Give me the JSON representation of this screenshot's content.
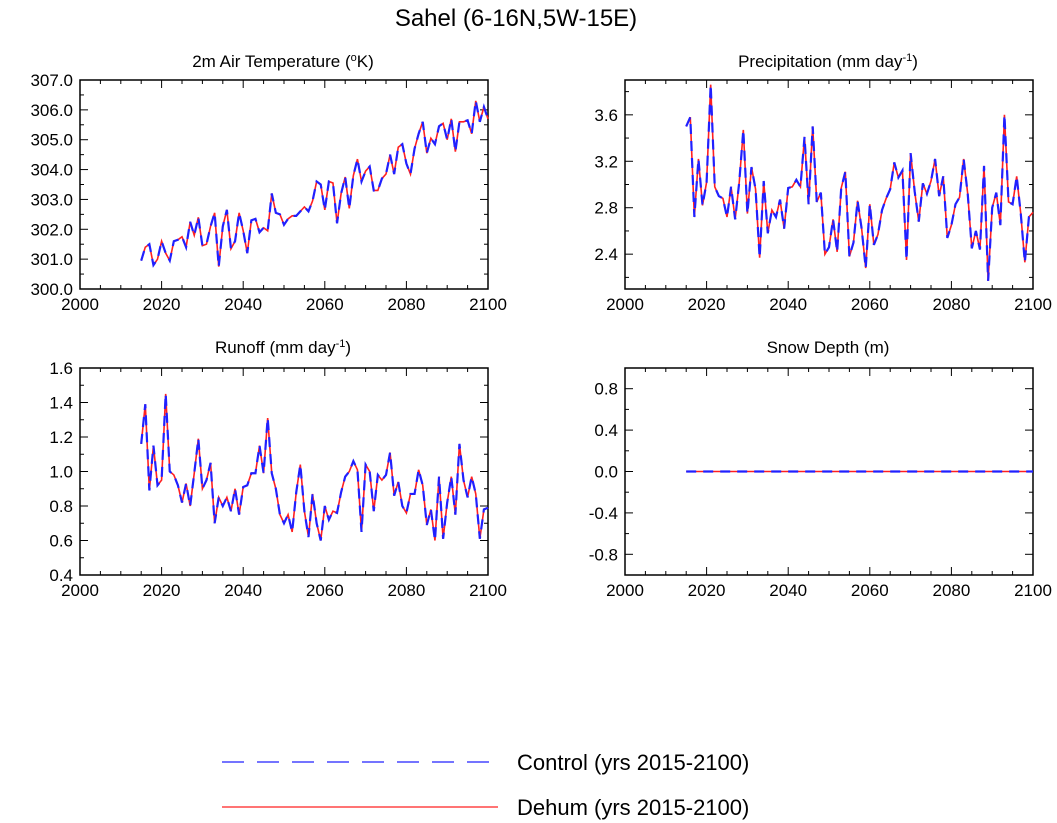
{
  "figure": {
    "title": "Sahel (6-16N,5W-15E)"
  },
  "colors": {
    "control": "#2020ff",
    "dehum": "#ff2020"
  },
  "legend": {
    "entries": [
      {
        "label": "Control (yrs 2015-2100)",
        "style": "dashed",
        "color": "#2020ff"
      },
      {
        "label": "Dehum (yrs 2015-2100)",
        "style": "solid",
        "color": "#ff2020"
      }
    ]
  },
  "chart_data": [
    {
      "type": "line",
      "title": "2m Air Temperature",
      "title_unit_base": "K",
      "title_unit_prefix": "o",
      "xlim": [
        2000,
        2100
      ],
      "ylim": [
        300.0,
        307.0
      ],
      "xticks": [
        2000,
        2020,
        2040,
        2060,
        2080,
        2100
      ],
      "yticks": [
        300.0,
        301.0,
        302.0,
        303.0,
        304.0,
        305.0,
        306.0,
        307.0
      ],
      "ytick_labels": [
        "300.0",
        "301.0",
        "302.0",
        "303.0",
        "304.0",
        "305.0",
        "306.0",
        "307.0"
      ],
      "x_start": 2015,
      "series": [
        {
          "name": "Control (yrs 2015-2100)",
          "values": [
            300.95,
            301.4,
            301.5,
            300.8,
            301.0,
            301.6,
            301.2,
            300.95,
            301.6,
            301.65,
            301.75,
            301.4,
            302.25,
            301.8,
            302.4,
            301.45,
            301.5,
            302.1,
            302.55,
            300.75,
            302.1,
            302.65,
            301.35,
            301.6,
            302.55,
            301.95,
            301.2,
            302.3,
            302.35,
            301.9,
            302.05,
            301.95,
            303.2,
            302.55,
            302.5,
            302.15,
            302.35,
            302.45,
            302.45,
            302.6,
            302.75,
            302.6,
            302.95,
            303.6,
            303.5,
            302.65,
            303.6,
            303.55,
            302.2,
            303.2,
            303.75,
            302.7,
            303.8,
            304.35,
            303.6,
            303.95,
            304.1,
            303.3,
            303.3,
            303.7,
            303.85,
            304.5,
            303.85,
            304.75,
            304.85,
            304.2,
            303.85,
            304.7,
            305.2,
            305.6,
            304.55,
            305.05,
            304.85,
            305.45,
            305.55,
            305.0,
            305.7,
            304.6,
            305.6,
            305.6,
            305.65,
            305.2,
            306.3,
            305.6,
            306.1,
            305.7
          ]
        },
        {
          "name": "Dehum (yrs 2015-2100)",
          "values": [
            300.95,
            301.4,
            301.5,
            300.8,
            301.0,
            301.6,
            301.2,
            300.95,
            301.6,
            301.65,
            301.75,
            301.4,
            302.25,
            301.8,
            302.4,
            301.45,
            301.5,
            302.1,
            302.55,
            300.75,
            302.1,
            302.65,
            301.35,
            301.6,
            302.55,
            301.95,
            301.2,
            302.3,
            302.35,
            301.9,
            302.05,
            301.95,
            303.2,
            302.55,
            302.5,
            302.15,
            302.35,
            302.45,
            302.45,
            302.6,
            302.75,
            302.6,
            302.95,
            303.6,
            303.5,
            302.65,
            303.6,
            303.55,
            302.2,
            303.2,
            303.75,
            302.7,
            303.8,
            304.35,
            303.6,
            303.95,
            304.1,
            303.3,
            303.3,
            303.7,
            303.85,
            304.5,
            303.85,
            304.75,
            304.85,
            304.2,
            303.85,
            304.7,
            305.2,
            305.6,
            304.55,
            305.05,
            304.85,
            305.45,
            305.55,
            305.0,
            305.7,
            304.6,
            305.6,
            305.6,
            305.65,
            305.2,
            306.3,
            305.6,
            306.1,
            305.7
          ]
        }
      ]
    },
    {
      "type": "line",
      "title": "Precipitation",
      "title_unit_base": "mm day",
      "title_unit_sup": "-1",
      "xlim": [
        2000,
        2100
      ],
      "ylim": [
        2.1,
        3.9
      ],
      "xticks": [
        2000,
        2020,
        2040,
        2060,
        2080,
        2100
      ],
      "yticks": [
        2.4,
        2.8,
        3.2,
        3.6
      ],
      "ytick_labels": [
        "2.4",
        "2.8",
        "3.2",
        "3.6"
      ],
      "x_start": 2015,
      "series": [
        {
          "name": "Control (yrs 2015-2100)",
          "values": [
            3.5,
            3.58,
            2.72,
            3.22,
            2.82,
            3.02,
            3.86,
            2.98,
            2.9,
            2.88,
            2.72,
            2.98,
            2.7,
            3.02,
            3.47,
            2.75,
            3.15,
            2.96,
            2.37,
            3.03,
            2.58,
            2.78,
            2.72,
            2.87,
            2.62,
            2.97,
            2.98,
            3.04,
            2.98,
            3.41,
            2.83,
            3.5,
            2.85,
            2.93,
            2.4,
            2.46,
            2.7,
            2.42,
            2.97,
            3.11,
            2.38,
            2.5,
            2.86,
            2.62,
            2.28,
            2.83,
            2.48,
            2.57,
            2.78,
            2.88,
            2.96,
            3.19,
            3.06,
            3.12,
            2.35,
            3.27,
            2.94,
            2.68,
            3.01,
            2.92,
            3.03,
            3.22,
            2.9,
            3.07,
            2.54,
            2.65,
            2.83,
            2.89,
            3.22,
            2.92,
            2.45,
            2.6,
            2.44,
            3.16,
            2.17,
            2.8,
            2.93,
            2.65,
            3.6,
            2.85,
            2.83,
            3.07,
            2.75,
            2.33,
            2.72,
            2.76
          ]
        },
        {
          "name": "Dehum (yrs 2015-2100)",
          "values": [
            3.5,
            3.58,
            2.72,
            3.22,
            2.82,
            3.02,
            3.86,
            2.98,
            2.9,
            2.88,
            2.72,
            2.98,
            2.7,
            3.02,
            3.47,
            2.75,
            3.15,
            2.96,
            2.37,
            3.03,
            2.58,
            2.78,
            2.72,
            2.87,
            2.62,
            2.97,
            2.98,
            3.04,
            2.98,
            3.41,
            2.83,
            3.5,
            2.85,
            2.93,
            2.4,
            2.46,
            2.7,
            2.42,
            2.97,
            3.11,
            2.38,
            2.5,
            2.86,
            2.62,
            2.28,
            2.83,
            2.48,
            2.57,
            2.78,
            2.88,
            2.96,
            3.19,
            3.06,
            3.12,
            2.35,
            3.27,
            2.94,
            2.68,
            3.01,
            2.92,
            3.03,
            3.22,
            2.9,
            3.07,
            2.54,
            2.65,
            2.83,
            2.89,
            3.22,
            2.92,
            2.45,
            2.6,
            2.44,
            3.16,
            2.17,
            2.8,
            2.93,
            2.65,
            3.6,
            2.85,
            2.83,
            3.07,
            2.75,
            2.33,
            2.72,
            2.76
          ]
        }
      ]
    },
    {
      "type": "line",
      "title": "Runoff",
      "title_unit_base": "mm day",
      "title_unit_sup": "-1",
      "xlim": [
        2000,
        2100
      ],
      "ylim": [
        0.4,
        1.6
      ],
      "xticks": [
        2000,
        2020,
        2040,
        2060,
        2080,
        2100
      ],
      "yticks": [
        0.4,
        0.6,
        0.8,
        1.0,
        1.2,
        1.4,
        1.6
      ],
      "ytick_labels": [
        "0.4",
        "0.6",
        "0.8",
        "1.0",
        "1.2",
        "1.4",
        "1.6"
      ],
      "x_start": 2015,
      "series": [
        {
          "name": "Control (yrs 2015-2100)",
          "values": [
            1.16,
            1.39,
            0.89,
            1.15,
            0.92,
            0.95,
            1.45,
            1.0,
            0.98,
            0.92,
            0.82,
            0.93,
            0.8,
            0.99,
            1.19,
            0.9,
            0.95,
            1.05,
            0.7,
            0.85,
            0.8,
            0.85,
            0.77,
            0.9,
            0.75,
            0.91,
            0.92,
            0.99,
            0.99,
            1.15,
            0.99,
            1.31,
            0.99,
            0.9,
            0.75,
            0.7,
            0.75,
            0.65,
            0.88,
            1.04,
            0.77,
            0.62,
            0.87,
            0.7,
            0.6,
            0.8,
            0.72,
            0.77,
            0.76,
            0.88,
            0.97,
            1.0,
            1.06,
            1.01,
            0.65,
            1.04,
            1.0,
            0.77,
            0.98,
            0.95,
            0.98,
            1.11,
            0.86,
            0.94,
            0.8,
            0.76,
            0.87,
            0.87,
            1.01,
            0.92,
            0.69,
            0.78,
            0.6,
            0.97,
            0.61,
            0.82,
            0.97,
            0.75,
            1.16,
            0.95,
            0.85,
            0.97,
            0.87,
            0.61,
            0.78,
            0.79
          ]
        },
        {
          "name": "Dehum (yrs 2015-2100)",
          "values": [
            1.16,
            1.39,
            0.89,
            1.15,
            0.92,
            0.95,
            1.45,
            1.0,
            0.98,
            0.92,
            0.82,
            0.93,
            0.8,
            0.99,
            1.19,
            0.9,
            0.95,
            1.05,
            0.7,
            0.85,
            0.8,
            0.85,
            0.77,
            0.9,
            0.75,
            0.91,
            0.92,
            0.99,
            0.99,
            1.15,
            0.99,
            1.31,
            0.99,
            0.9,
            0.75,
            0.7,
            0.75,
            0.65,
            0.88,
            1.04,
            0.77,
            0.62,
            0.87,
            0.7,
            0.6,
            0.8,
            0.72,
            0.77,
            0.76,
            0.88,
            0.97,
            1.0,
            1.06,
            1.01,
            0.65,
            1.04,
            1.0,
            0.77,
            0.98,
            0.95,
            0.98,
            1.11,
            0.86,
            0.94,
            0.8,
            0.76,
            0.87,
            0.87,
            1.01,
            0.92,
            0.69,
            0.78,
            0.6,
            0.97,
            0.61,
            0.82,
            0.97,
            0.75,
            1.16,
            0.95,
            0.85,
            0.97,
            0.87,
            0.61,
            0.78,
            0.79
          ]
        }
      ]
    },
    {
      "type": "line",
      "title": "Snow Depth (m)",
      "xlim": [
        2000,
        2100
      ],
      "ylim": [
        -1.0,
        1.0
      ],
      "xticks": [
        2000,
        2020,
        2040,
        2060,
        2080,
        2100
      ],
      "yticks": [
        -0.8,
        -0.4,
        0.0,
        0.4,
        0.8
      ],
      "ytick_labels": [
        "-0.8",
        "-0.4",
        "0.0",
        "0.4",
        "0.8"
      ],
      "x_start": 2015,
      "series": [
        {
          "name": "Control (yrs 2015-2100)",
          "values": [
            0,
            0,
            0,
            0,
            0,
            0,
            0,
            0,
            0,
            0,
            0,
            0,
            0,
            0,
            0,
            0,
            0,
            0,
            0,
            0,
            0,
            0,
            0,
            0,
            0,
            0,
            0,
            0,
            0,
            0,
            0,
            0,
            0,
            0,
            0,
            0,
            0,
            0,
            0,
            0,
            0,
            0,
            0,
            0,
            0,
            0,
            0,
            0,
            0,
            0,
            0,
            0,
            0,
            0,
            0,
            0,
            0,
            0,
            0,
            0,
            0,
            0,
            0,
            0,
            0,
            0,
            0,
            0,
            0,
            0,
            0,
            0,
            0,
            0,
            0,
            0,
            0,
            0,
            0,
            0,
            0,
            0,
            0,
            0,
            0,
            0
          ]
        },
        {
          "name": "Dehum (yrs 2015-2100)",
          "values": [
            0,
            0,
            0,
            0,
            0,
            0,
            0,
            0,
            0,
            0,
            0,
            0,
            0,
            0,
            0,
            0,
            0,
            0,
            0,
            0,
            0,
            0,
            0,
            0,
            0,
            0,
            0,
            0,
            0,
            0,
            0,
            0,
            0,
            0,
            0,
            0,
            0,
            0,
            0,
            0,
            0,
            0,
            0,
            0,
            0,
            0,
            0,
            0,
            0,
            0,
            0,
            0,
            0,
            0,
            0,
            0,
            0,
            0,
            0,
            0,
            0,
            0,
            0,
            0,
            0,
            0,
            0,
            0,
            0,
            0,
            0,
            0,
            0,
            0,
            0,
            0,
            0,
            0,
            0,
            0,
            0,
            0,
            0,
            0,
            0,
            0
          ]
        }
      ]
    }
  ]
}
